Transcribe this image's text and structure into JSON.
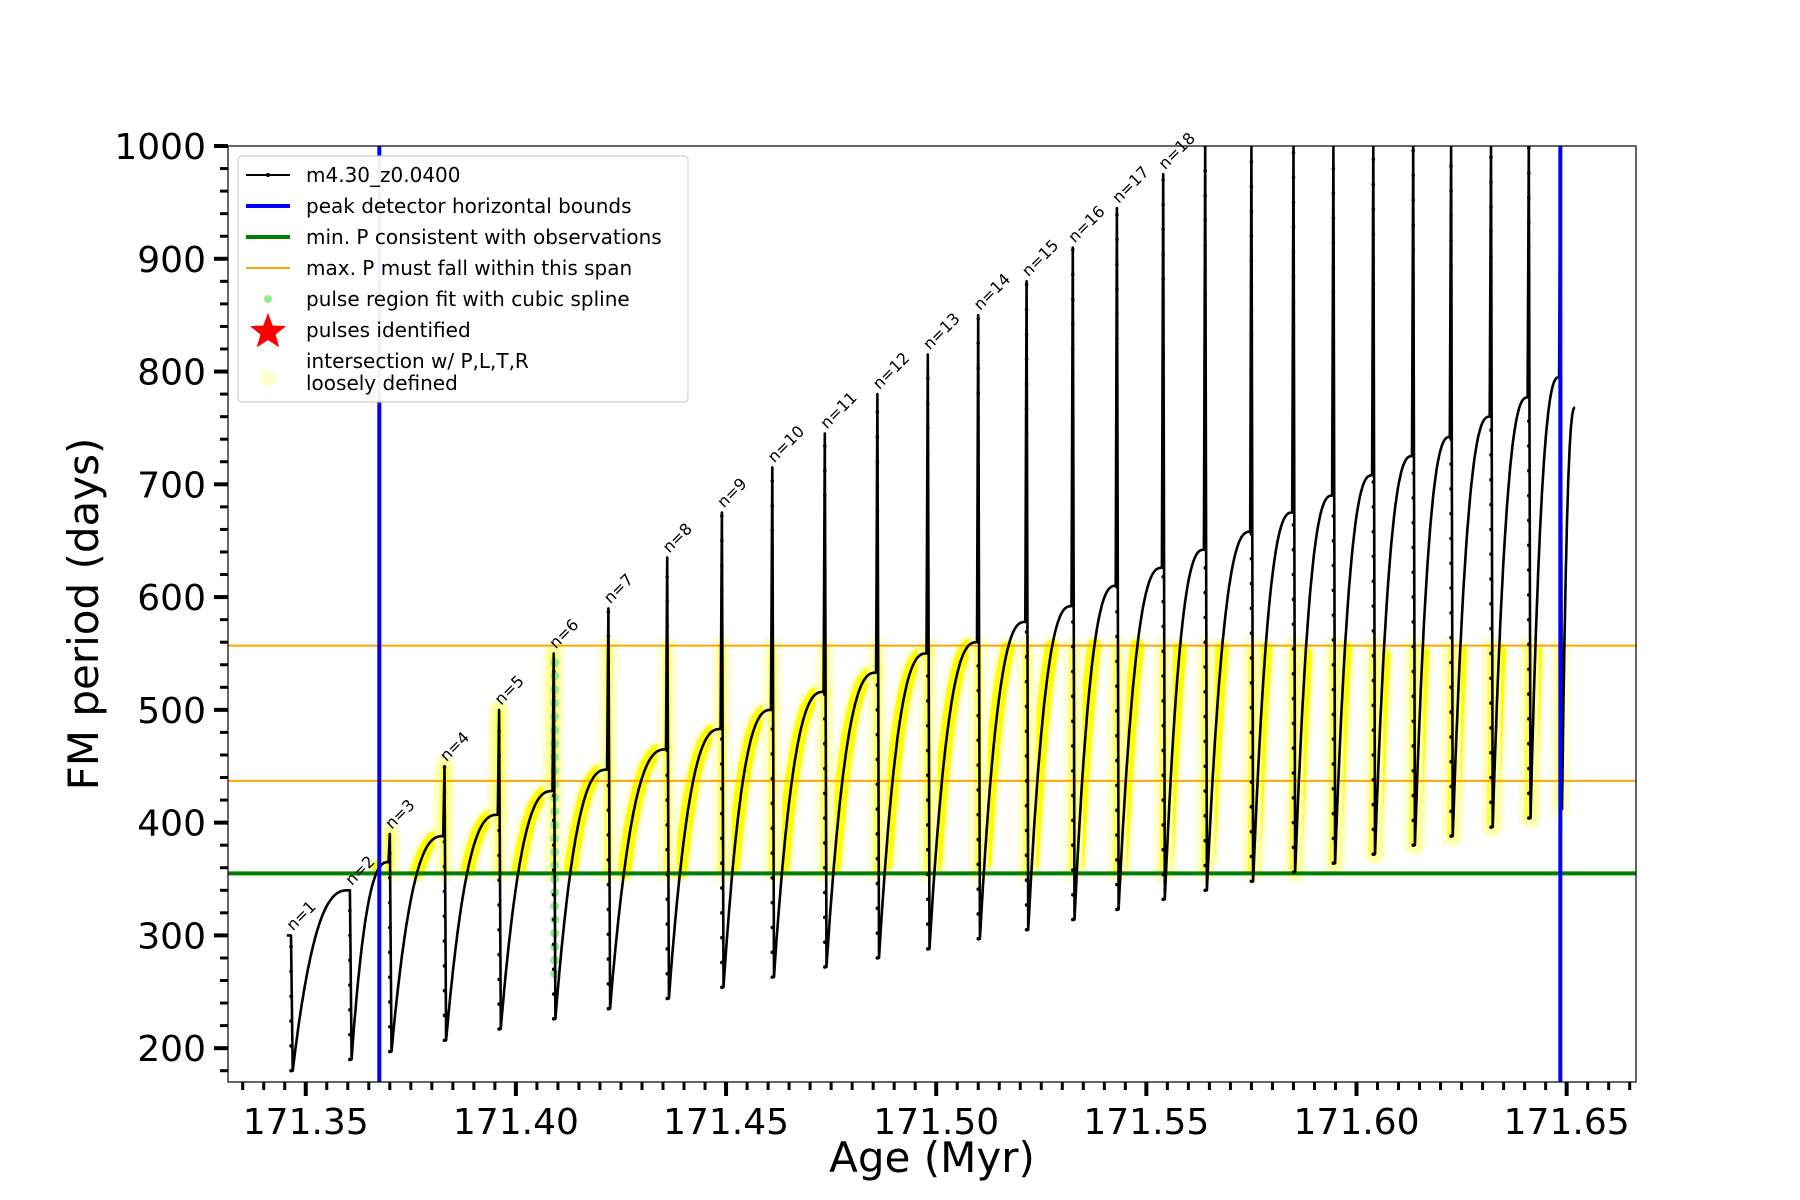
{
  "chart_data": {
    "type": "line",
    "xlabel": "Age (Myr)",
    "ylabel": "FM period (days)",
    "xlim": [
      171.3315,
      171.6665
    ],
    "ylim": [
      170,
      1000
    ],
    "xticks": [
      171.35,
      171.4,
      171.45,
      171.5,
      171.55,
      171.6,
      171.65
    ],
    "xtick_labels": [
      "171.35",
      "171.40",
      "171.45",
      "171.50",
      "171.55",
      "171.60",
      "171.65"
    ],
    "yticks": [
      200,
      300,
      400,
      500,
      600,
      700,
      800,
      900,
      1000
    ],
    "ytick_labels": [
      "200",
      "300",
      "400",
      "500",
      "600",
      "700",
      "800",
      "900",
      "1000"
    ],
    "grid": false,
    "legend_position": "top-left",
    "colors": {
      "model": "#000000",
      "bounds": "#0000ff",
      "min_p": "#008000",
      "max_p": "#ffa500",
      "spline": "#90ee90",
      "pulse": "#ff0000",
      "intersection": "#ffff00",
      "loose": "#ffffcc"
    },
    "legend": [
      {
        "label": "m4.30_z0.0400",
        "kind": "line-dot",
        "color": "#000000"
      },
      {
        "label": "peak detector horizontal bounds",
        "kind": "line",
        "color": "#0000ff"
      },
      {
        "label": "min. P consistent with observations",
        "kind": "line",
        "color": "#008000"
      },
      {
        "label": "max. P must fall within this span",
        "kind": "thin-line",
        "color": "#ffa500"
      },
      {
        "label": "pulse region fit with cubic spline",
        "kind": "dot",
        "color": "#90ee90"
      },
      {
        "label": "pulses identified",
        "kind": "star",
        "color": "#ff0000"
      },
      {
        "label": "intersection w/ P,L,T,R",
        "label2": "loosely defined",
        "kind": "big-dot",
        "color": "#ffffcc"
      }
    ],
    "vertical_lines": [
      {
        "name": "peak detector horizontal bounds",
        "x": 171.3675
      },
      {
        "name": "peak detector horizontal bounds",
        "x": 171.6485
      }
    ],
    "horizontal_lines": [
      {
        "name": "min. P consistent with observations",
        "y": 355
      },
      {
        "name": "max. P must fall within this span",
        "y": 437
      },
      {
        "name": "max. P must fall within this span",
        "y": 557
      }
    ],
    "pulses": [
      {
        "label": "n=1",
        "x": 171.3465,
        "top": 300,
        "trough": 180,
        "plateau": null,
        "recovered": 340
      },
      {
        "label": "n=2",
        "x": 171.3605,
        "top": 340,
        "trough": 190,
        "plateau": null,
        "recovered": 365
      },
      {
        "label": "n=3",
        "x": 171.37,
        "top": 390,
        "trough": 197,
        "plateau": null,
        "recovered": 388
      },
      {
        "label": "n=4",
        "x": 171.383,
        "top": 450,
        "trough": 207,
        "plateau": null,
        "recovered": 407
      },
      {
        "label": "n=5",
        "x": 171.396,
        "top": 500,
        "trough": 217,
        "plateau": null,
        "recovered": 428
      },
      {
        "label": "n=6",
        "x": 171.409,
        "top": 550,
        "trough": 226,
        "plateau": null,
        "recovered": 447
      },
      {
        "label": "n=7",
        "x": 171.422,
        "top": 590,
        "trough": 235,
        "plateau": null,
        "recovered": 465
      },
      {
        "label": "n=8",
        "x": 171.436,
        "top": 635,
        "trough": 244,
        "plateau": null,
        "recovered": 483
      },
      {
        "label": "n=9",
        "x": 171.449,
        "top": 675,
        "trough": 254,
        "plateau": null,
        "recovered": 500
      },
      {
        "label": "n=10",
        "x": 171.461,
        "top": 715,
        "trough": 263,
        "plateau": null,
        "recovered": 516
      },
      {
        "label": "n=11",
        "x": 171.4735,
        "top": 745,
        "trough": 272,
        "plateau": null,
        "recovered": 533
      },
      {
        "label": "n=12",
        "x": 171.486,
        "top": 780,
        "trough": 280,
        "plateau": null,
        "recovered": 550
      },
      {
        "label": "n=13",
        "x": 171.498,
        "top": 815,
        "trough": 288,
        "plateau": null,
        "recovered": 560
      },
      {
        "label": "n=14",
        "x": 171.51,
        "top": 850,
        "trough": 297,
        "plateau": null,
        "recovered": 578
      },
      {
        "label": "n=15",
        "x": 171.5215,
        "top": 880,
        "trough": 305,
        "plateau": null,
        "recovered": 592
      },
      {
        "label": "n=16",
        "x": 171.5325,
        "top": 910,
        "trough": 314,
        "plateau": null,
        "recovered": 610
      },
      {
        "label": "n=17",
        "x": 171.543,
        "top": 945,
        "trough": 323,
        "plateau": null,
        "recovered": 626
      },
      {
        "label": "n=18",
        "x": 171.554,
        "top": 975,
        "trough": 332,
        "plateau": null,
        "recovered": 642
      },
      {
        "label": "",
        "x": 171.564,
        "top": 1000,
        "trough": 340,
        "plateau": null,
        "recovered": 658
      },
      {
        "label": "",
        "x": 171.575,
        "top": 1000,
        "trough": 348,
        "plateau": null,
        "recovered": 675
      },
      {
        "label": "",
        "x": 171.585,
        "top": 1000,
        "trough": 356,
        "plateau": null,
        "recovered": 690
      },
      {
        "label": "",
        "x": 171.5945,
        "top": 1000,
        "trough": 364,
        "plateau": null,
        "recovered": 708
      },
      {
        "label": "",
        "x": 171.604,
        "top": 1000,
        "trough": 372,
        "plateau": null,
        "recovered": 725
      },
      {
        "label": "",
        "x": 171.6135,
        "top": 1000,
        "trough": 380,
        "plateau": null,
        "recovered": 742
      },
      {
        "label": "",
        "x": 171.6225,
        "top": 1000,
        "trough": 388,
        "plateau": null,
        "recovered": 760
      },
      {
        "label": "",
        "x": 171.632,
        "top": 1000,
        "trough": 396,
        "plateau": null,
        "recovered": 777
      },
      {
        "label": "",
        "x": 171.641,
        "top": 1000,
        "trough": 404,
        "plateau": null,
        "recovered": 795
      },
      {
        "label": "",
        "x": 171.6485,
        "top": 1000,
        "trough": 412,
        "plateau": null,
        "recovered": null
      }
    ],
    "end_point": {
      "x": 171.652,
      "y": 768
    },
    "first_point": {
      "x": 171.3455,
      "y": 300
    }
  }
}
